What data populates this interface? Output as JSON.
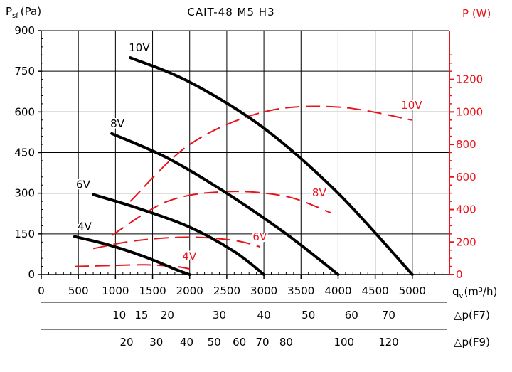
{
  "chart_data": {
    "type": "line",
    "title": "CAIT-48 M5 H3",
    "left_axis": {
      "label_main": "P",
      "label_sub": "sf",
      "label_unit": "(Pa)",
      "ticks": [
        0,
        150,
        300,
        450,
        600,
        750,
        900
      ],
      "ylim": [
        0,
        900
      ]
    },
    "right_axis": {
      "label": "P (W)",
      "color": "#e8141b",
      "ticks": [
        0,
        200,
        400,
        600,
        800,
        1000,
        1200
      ],
      "ylim": [
        0,
        1500
      ]
    },
    "x_axis": {
      "label_main": "q",
      "label_sub": "v",
      "label_unit": "(m³/h)",
      "ticks": [
        0,
        500,
        1000,
        1500,
        2000,
        2500,
        3000,
        3500,
        4000,
        4500,
        5000
      ],
      "xlim": [
        0,
        5500
      ]
    },
    "secondary_scales": [
      {
        "label": "△p(F7)",
        "ticks": [
          {
            "label": "10",
            "q": 1050
          },
          {
            "label": "15",
            "q": 1350
          },
          {
            "label": "20",
            "q": 1700
          },
          {
            "label": "30",
            "q": 2400
          },
          {
            "label": "40",
            "q": 3000
          },
          {
            "label": "50",
            "q": 3600
          },
          {
            "label": "60",
            "q": 4180
          },
          {
            "label": "70",
            "q": 4680
          }
        ]
      },
      {
        "label": "△p(F9)",
        "ticks": [
          {
            "label": "20",
            "q": 1150
          },
          {
            "label": "30",
            "q": 1550
          },
          {
            "label": "40",
            "q": 1960
          },
          {
            "label": "50",
            "q": 2330
          },
          {
            "label": "60",
            "q": 2670
          },
          {
            "label": "70",
            "q": 2980
          },
          {
            "label": "80",
            "q": 3300
          },
          {
            "label": "100",
            "q": 4080
          },
          {
            "label": "120",
            "q": 4680
          }
        ]
      }
    ],
    "pressure_series": [
      {
        "name": "10V",
        "x": [
          1200,
          2000,
          3000,
          4000,
          5000
        ],
        "y": [
          800,
          710,
          540,
          300,
          0
        ]
      },
      {
        "name": "8V",
        "x": [
          950,
          1700,
          2500,
          3300,
          4000
        ],
        "y": [
          520,
          430,
          300,
          150,
          0
        ]
      },
      {
        "name": "6V",
        "x": [
          700,
          1300,
          2000,
          2600,
          3000
        ],
        "y": [
          295,
          245,
          175,
          85,
          0
        ]
      },
      {
        "name": "4V",
        "x": [
          450,
          900,
          1400,
          1800,
          2000
        ],
        "y": [
          140,
          110,
          65,
          20,
          0
        ]
      }
    ],
    "power_series": [
      {
        "name": "10V",
        "x": [
          1200,
          2000,
          3000,
          4000,
          5000
        ],
        "y": [
          450,
          800,
          1000,
          1030,
          950
        ]
      },
      {
        "name": "8V",
        "x": [
          950,
          1700,
          2500,
          3300,
          3900
        ],
        "y": [
          240,
          450,
          510,
          480,
          380
        ]
      },
      {
        "name": "6V",
        "x": [
          700,
          1300,
          2000,
          2600,
          2950
        ],
        "y": [
          160,
          210,
          230,
          210,
          170
        ]
      },
      {
        "name": "4V",
        "x": [
          450,
          900,
          1400,
          1800,
          2000
        ],
        "y": [
          50,
          55,
          60,
          50,
          35
        ]
      }
    ],
    "grid": true,
    "pressure_color": "#000000",
    "power_color": "#e8141b"
  }
}
